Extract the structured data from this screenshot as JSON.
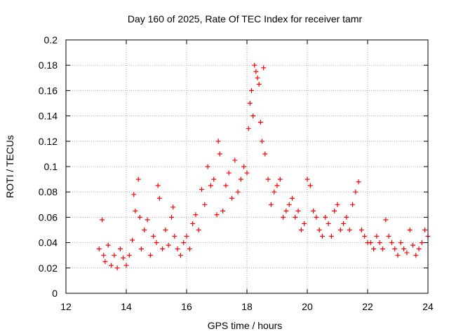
{
  "chart_data": {
    "type": "scatter",
    "title": "Day 160 of 2025, Rate Of TEC Index for receiver tamr",
    "xlabel": "GPS time / hours",
    "ylabel": "ROTI / TECUs",
    "xlim": [
      12,
      24
    ],
    "ylim": [
      0,
      0.2
    ],
    "x_ticks": [
      "12",
      "14",
      "16",
      "18",
      "20",
      "22",
      "24"
    ],
    "y_ticks": [
      "0",
      "0.02",
      "0.04",
      "0.06",
      "0.08",
      "0.1",
      "0.12",
      "0.14",
      "0.16",
      "0.18",
      "0.2"
    ],
    "grid": true,
    "marker": "plus",
    "series": [
      {
        "name": "ROTI",
        "color": "#ff0000",
        "x": [
          13.1,
          13.2,
          13.25,
          13.3,
          13.4,
          13.5,
          13.6,
          13.7,
          13.8,
          13.9,
          14.0,
          14.1,
          14.2,
          14.25,
          14.3,
          14.4,
          14.45,
          14.5,
          14.6,
          14.7,
          14.8,
          14.9,
          15.0,
          15.05,
          15.1,
          15.2,
          15.3,
          15.4,
          15.5,
          15.55,
          15.6,
          15.7,
          15.8,
          15.9,
          16.0,
          16.1,
          16.2,
          16.3,
          16.4,
          16.5,
          16.6,
          16.7,
          16.8,
          16.9,
          17.0,
          17.05,
          17.1,
          17.2,
          17.3,
          17.4,
          17.5,
          17.6,
          17.7,
          17.8,
          17.9,
          18.0,
          18.05,
          18.1,
          18.15,
          18.2,
          18.25,
          18.3,
          18.35,
          18.4,
          18.45,
          18.5,
          18.55,
          18.6,
          18.7,
          18.8,
          18.9,
          19.0,
          19.1,
          19.2,
          19.3,
          19.4,
          19.5,
          19.6,
          19.7,
          19.8,
          19.9,
          20.0,
          20.1,
          20.2,
          20.3,
          20.4,
          20.5,
          20.6,
          20.7,
          20.8,
          20.9,
          21.0,
          21.1,
          21.2,
          21.3,
          21.4,
          21.5,
          21.6,
          21.7,
          21.8,
          21.9,
          22.0,
          22.1,
          22.2,
          22.3,
          22.4,
          22.5,
          22.6,
          22.7,
          22.8,
          22.9,
          23.0,
          23.1,
          23.2,
          23.3,
          23.4,
          23.5,
          23.6,
          23.7,
          23.8,
          23.9,
          24.0
        ],
        "y": [
          0.035,
          0.058,
          0.03,
          0.025,
          0.038,
          0.022,
          0.03,
          0.02,
          0.035,
          0.028,
          0.022,
          0.03,
          0.042,
          0.078,
          0.065,
          0.09,
          0.06,
          0.035,
          0.05,
          0.058,
          0.03,
          0.045,
          0.04,
          0.085,
          0.075,
          0.035,
          0.05,
          0.038,
          0.06,
          0.068,
          0.045,
          0.035,
          0.03,
          0.04,
          0.045,
          0.035,
          0.055,
          0.062,
          0.05,
          0.082,
          0.07,
          0.1,
          0.085,
          0.09,
          0.062,
          0.12,
          0.11,
          0.065,
          0.085,
          0.095,
          0.075,
          0.105,
          0.08,
          0.09,
          0.1,
          0.095,
          0.13,
          0.15,
          0.16,
          0.14,
          0.18,
          0.175,
          0.17,
          0.165,
          0.135,
          0.12,
          0.178,
          0.11,
          0.09,
          0.07,
          0.08,
          0.085,
          0.09,
          0.06,
          0.065,
          0.07,
          0.075,
          0.06,
          0.065,
          0.05,
          0.055,
          0.09,
          0.085,
          0.065,
          0.06,
          0.05,
          0.045,
          0.06,
          0.055,
          0.045,
          0.065,
          0.07,
          0.05,
          0.055,
          0.06,
          0.05,
          0.07,
          0.08,
          0.088,
          0.05,
          0.045,
          0.04,
          0.04,
          0.035,
          0.045,
          0.04,
          0.035,
          0.058,
          0.045,
          0.04,
          0.035,
          0.03,
          0.04,
          0.035,
          0.032,
          0.05,
          0.038,
          0.03,
          0.035,
          0.04,
          0.05,
          0.045
        ]
      }
    ]
  }
}
